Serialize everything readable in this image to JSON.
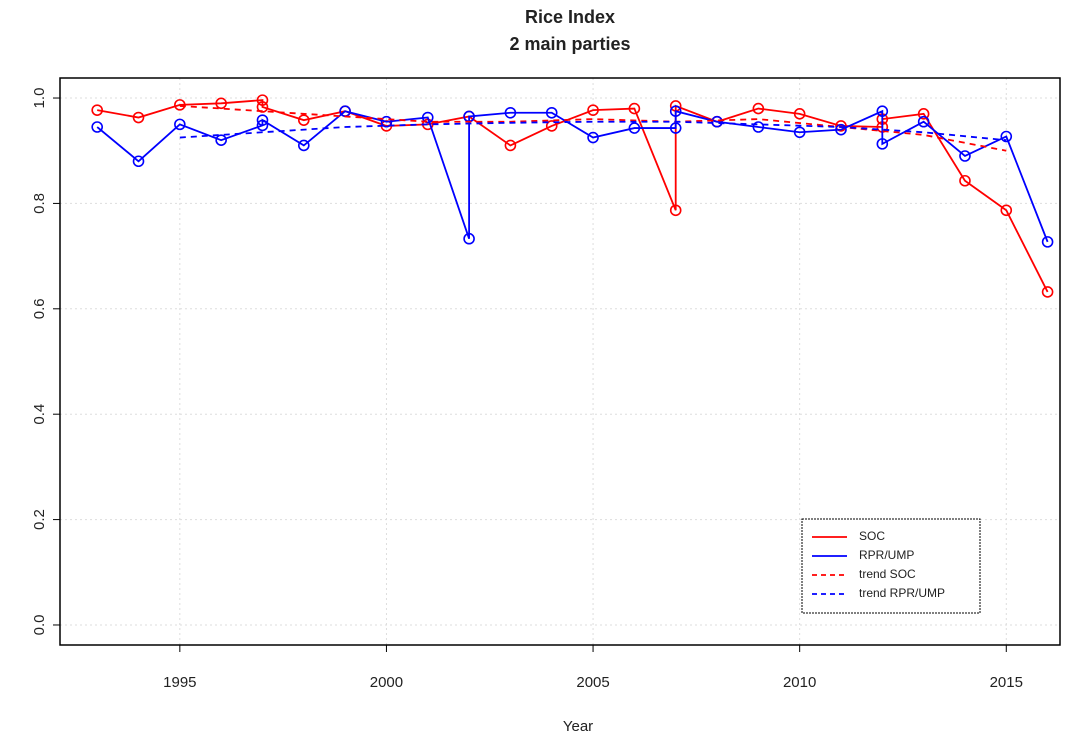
{
  "chart_data": {
    "type": "line",
    "title": "Rice Index",
    "subtitle": "2 main parties",
    "x_label": "Year",
    "xlim": [
      1992.1,
      2016.3
    ],
    "ylim": [
      -0.038,
      1.038
    ],
    "xticks": [
      1995,
      2000,
      2005,
      2010,
      2015
    ],
    "yticks": [
      {
        "value": 0,
        "label": "0.0"
      },
      {
        "value": 0.2,
        "label": "0.2"
      },
      {
        "value": 0.4,
        "label": "0.4"
      },
      {
        "value": 0.6,
        "label": "0.6"
      },
      {
        "value": 0.8,
        "label": "0.8"
      },
      {
        "value": 1,
        "label": "1.0"
      }
    ],
    "grid": true,
    "legend_position": "bottomright",
    "series": [
      {
        "name": "SOC",
        "color": "#ff0000",
        "dashed": false,
        "markers": true,
        "x": [
          1993,
          1994,
          1995,
          1996,
          1997,
          1997,
          1998,
          1999,
          2000,
          2001,
          2002,
          2003,
          2004,
          2005,
          2006,
          2007,
          2007,
          2008,
          2009,
          2010,
          2011,
          2012,
          2012,
          2013,
          2014,
          2015,
          2016
        ],
        "values": [
          0.977,
          0.963,
          0.987,
          0.99,
          0.996,
          0.983,
          0.958,
          0.975,
          0.947,
          0.95,
          0.965,
          0.91,
          0.947,
          0.977,
          0.98,
          0.787,
          0.985,
          0.955,
          0.98,
          0.97,
          0.947,
          0.945,
          0.96,
          0.97,
          0.843,
          0.787,
          0.632
        ]
      },
      {
        "name": "RPR/UMP",
        "color": "#0000ff",
        "dashed": false,
        "markers": true,
        "x": [
          1993,
          1994,
          1995,
          1996,
          1997,
          1997,
          1998,
          1999,
          2000,
          2001,
          2002,
          2002,
          2003,
          2004,
          2005,
          2006,
          2007,
          2007,
          2008,
          2009,
          2010,
          2011,
          2012,
          2012,
          2013,
          2014,
          2015,
          2016
        ],
        "values": [
          0.945,
          0.88,
          0.95,
          0.92,
          0.948,
          0.958,
          0.91,
          0.975,
          0.955,
          0.963,
          0.733,
          0.965,
          0.972,
          0.972,
          0.925,
          0.943,
          0.943,
          0.975,
          0.955,
          0.945,
          0.935,
          0.94,
          0.975,
          0.913,
          0.955,
          0.89,
          0.927,
          0.727
        ]
      },
      {
        "name": "trend SOC",
        "color": "#ff0000",
        "dashed": true,
        "markers": false,
        "x": [
          1995,
          1997,
          1999,
          2001,
          2003,
          2005,
          2007,
          2009,
          2011,
          2013,
          2015
        ],
        "values": [
          0.985,
          0.975,
          0.965,
          0.955,
          0.955,
          0.96,
          0.955,
          0.96,
          0.945,
          0.93,
          0.9
        ]
      },
      {
        "name": "trend RPR/UMP",
        "color": "#0000ff",
        "dashed": true,
        "markers": false,
        "x": [
          1995,
          1997,
          1999,
          2001,
          2003,
          2005,
          2007,
          2009,
          2011,
          2013,
          2015
        ],
        "values": [
          0.925,
          0.935,
          0.945,
          0.95,
          0.953,
          0.955,
          0.955,
          0.95,
          0.945,
          0.935,
          0.92
        ]
      }
    ]
  }
}
